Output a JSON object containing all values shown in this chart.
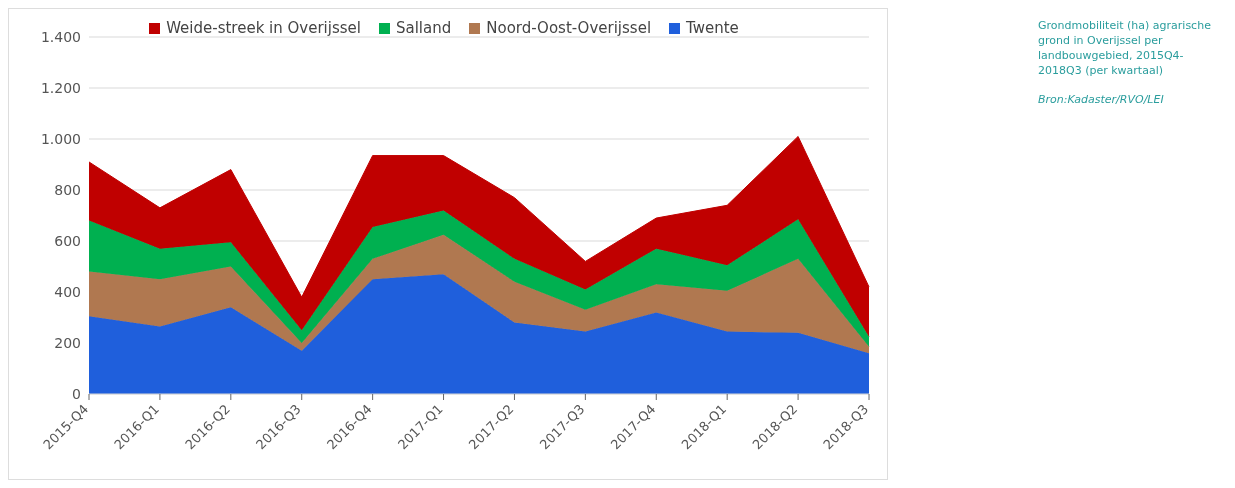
{
  "chart_data": {
    "type": "area",
    "stacked": true,
    "categories": [
      "2015-Q4",
      "2016-Q1",
      "2016-Q2",
      "2016-Q3",
      "2016-Q4",
      "2017-Q1",
      "2017-Q2",
      "2017-Q3",
      "2017-Q4",
      "2018-Q1",
      "2018-Q2",
      "2018-Q3"
    ],
    "series": [
      {
        "name": "Twente",
        "color": "#1f5fdc",
        "values": [
          305,
          265,
          340,
          170,
          450,
          470,
          280,
          245,
          320,
          245,
          240,
          160
        ]
      },
      {
        "name": "Noord-Oost-Overijssel",
        "color": "#b07850",
        "values": [
          175,
          185,
          160,
          30,
          80,
          155,
          160,
          85,
          110,
          160,
          290,
          25
        ]
      },
      {
        "name": "Salland",
        "color": "#00b050",
        "values": [
          200,
          120,
          95,
          50,
          125,
          95,
          90,
          80,
          140,
          100,
          155,
          40
        ]
      },
      {
        "name": "Weide-streek in Overijssel",
        "color": "#c00000",
        "values": [
          230,
          160,
          285,
          130,
          280,
          215,
          240,
          110,
          120,
          235,
          325,
          195
        ]
      }
    ],
    "ylim": [
      0,
      1400
    ],
    "yticks": [
      0,
      200,
      400,
      600,
      800,
      {
        "value": 1000,
        "label": "1.000"
      },
      {
        "value": 1200,
        "label": "1.200"
      },
      {
        "value": 1400,
        "label": "1.400"
      }
    ],
    "grid": "y",
    "legend": "top",
    "annotations": [
      "Grondmobiliteit (ha) agrarische grond in Overijssel per landbouwgebied, 2015Q4-2018Q3 (per kwartaal)",
      "Bron:Kadaster/RVO/LEI"
    ]
  }
}
